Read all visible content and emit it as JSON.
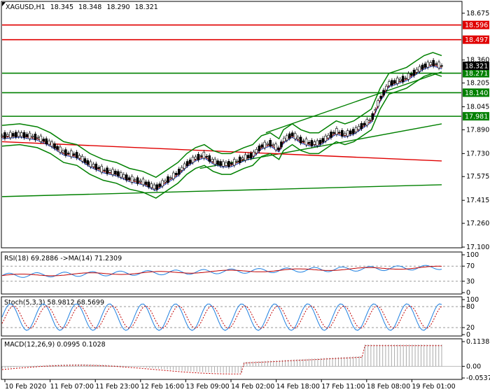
{
  "chart_data": [
    {
      "type": "candlestick",
      "header": {
        "symbol": "XAGUSD,H1",
        "open": "18.345",
        "high": "18.348",
        "low": "18.290",
        "close": "18.321"
      },
      "price_ticks": [
        "18.675",
        "18.360",
        "18.205",
        "18.045",
        "17.890",
        "17.730",
        "17.575",
        "17.415",
        "17.260",
        "17.100"
      ],
      "price_range": [
        17.1,
        18.75
      ],
      "horizontal_levels": [
        {
          "value": 18.596,
          "label": "18.596",
          "color": "#e00000"
        },
        {
          "value": 18.497,
          "label": "18.497",
          "color": "#e00000"
        },
        {
          "value": 18.271,
          "label": "18.271",
          "color": "#008000"
        },
        {
          "value": 18.14,
          "label": "18.140",
          "color": "#008000"
        },
        {
          "value": 17.981,
          "label": "17.981",
          "color": "#008000"
        }
      ],
      "current_price": {
        "value": 18.321,
        "label": "18.321",
        "color": "#000000"
      },
      "x_ticks": [
        "10 Feb 2020",
        "11 Feb 07:00",
        "11 Feb 23:00",
        "12 Feb 16:00",
        "13 Feb 09:00",
        "14 Feb 02:00",
        "14 Feb 18:00",
        "17 Feb 11:00",
        "18 Feb 08:00",
        "19 Feb 01:00"
      ],
      "close_path": [
        [
          0,
          17.85
        ],
        [
          4,
          17.86
        ],
        [
          8,
          17.84
        ],
        [
          11,
          17.8
        ],
        [
          14,
          17.74
        ],
        [
          17,
          17.72
        ],
        [
          20,
          17.66
        ],
        [
          23,
          17.62
        ],
        [
          26,
          17.6
        ],
        [
          29,
          17.56
        ],
        [
          32,
          17.54
        ],
        [
          35,
          17.5
        ],
        [
          38,
          17.56
        ],
        [
          40,
          17.6
        ],
        [
          42,
          17.66
        ],
        [
          44,
          17.7
        ],
        [
          46,
          17.72
        ],
        [
          48,
          17.68
        ],
        [
          50,
          17.66
        ],
        [
          52,
          17.66
        ],
        [
          55,
          17.7
        ],
        [
          57,
          17.72
        ],
        [
          59,
          17.78
        ],
        [
          61,
          17.8
        ],
        [
          63,
          17.76
        ],
        [
          64,
          17.82
        ],
        [
          66,
          17.86
        ],
        [
          68,
          17.82
        ],
        [
          70,
          17.8
        ],
        [
          72,
          17.8
        ],
        [
          74,
          17.84
        ],
        [
          76,
          17.88
        ],
        [
          78,
          17.86
        ],
        [
          80,
          17.88
        ],
        [
          82,
          17.92
        ],
        [
          84,
          17.96
        ],
        [
          86,
          18.1
        ],
        [
          88,
          18.2
        ],
        [
          90,
          18.22
        ],
        [
          92,
          18.24
        ],
        [
          94,
          18.28
        ],
        [
          96,
          18.32
        ],
        [
          98,
          18.34
        ],
        [
          100,
          18.32
        ]
      ],
      "trend_lines": [
        {
          "color": "#008000",
          "from": [
            0,
            17.44
          ],
          "to": [
            100,
            17.52
          ]
        },
        {
          "color": "#008000",
          "from": [
            45,
            17.63
          ],
          "to": [
            100,
            17.93
          ]
        },
        {
          "color": "#008000",
          "from": [
            60,
            17.87
          ],
          "to": [
            100,
            18.28
          ]
        },
        {
          "color": "#e00000",
          "from": [
            0,
            17.81
          ],
          "to": [
            100,
            17.68
          ]
        }
      ]
    },
    {
      "type": "line",
      "title": "RSI(18) 69.2886  ->MA(14) 71.2309",
      "ticks": [
        "100",
        "70",
        "30",
        "0"
      ],
      "levels": [
        70,
        30
      ],
      "range": [
        0,
        100
      ],
      "rsi_value": 69.2886,
      "ma_value": 71.2309
    },
    {
      "type": "line",
      "title": "Stoch(5,3,3) 58.9812 68.5699",
      "ticks": [
        "100",
        "80",
        "20",
        "0"
      ],
      "levels": [
        80,
        20
      ],
      "range": [
        0,
        100
      ],
      "k_value": 58.9812,
      "d_value": 68.5699
    },
    {
      "type": "bar",
      "title": "MACD(12,26,9) 0.0995 0.1028",
      "ticks": [
        "0.1138",
        "0.00",
        "-0.0537"
      ],
      "range": [
        -0.0537,
        0.1138
      ],
      "macd_value": 0.0995,
      "signal_value": 0.1028
    }
  ]
}
